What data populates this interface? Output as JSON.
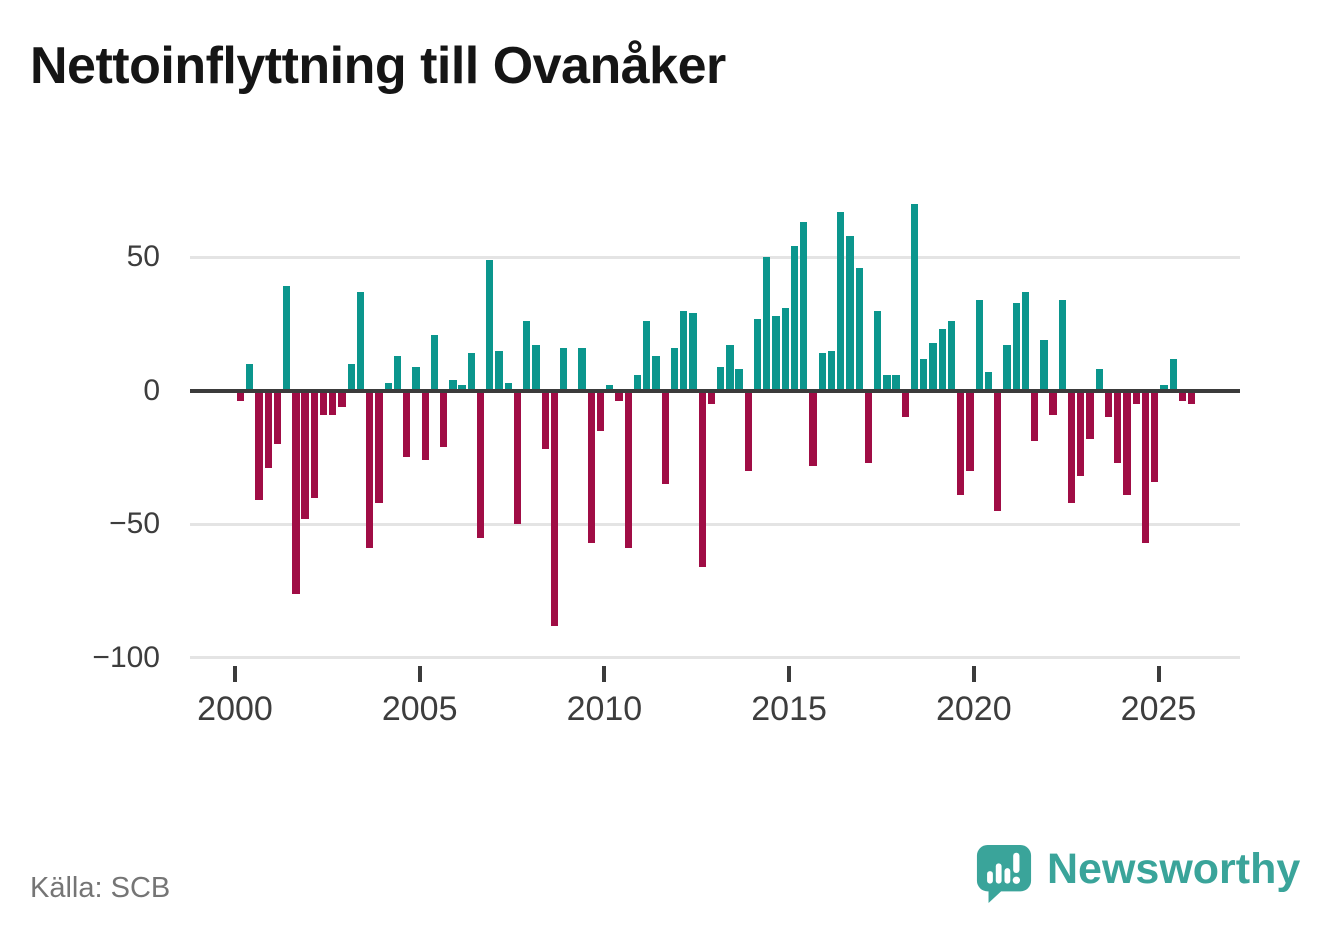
{
  "title": "Nettoinflyttning till Ovanåker",
  "source": "Källa: SCB",
  "branding": {
    "wordmark": "Newsworthy",
    "color": "#3aa49a"
  },
  "chart_data": {
    "type": "bar",
    "title": "Nettoinflyttning till Ovanåker",
    "frequency": "quarterly",
    "x_start": "2000-Q1",
    "x_end": "2025-Q4",
    "ylabel": "",
    "xlabel": "",
    "ylim": [
      -112,
      78
    ],
    "y_ticks": [
      50,
      0,
      -50,
      -100
    ],
    "y_tick_labels": [
      "50",
      "0",
      "−50",
      "−100"
    ],
    "x_tick_years": [
      2000,
      2005,
      2010,
      2015,
      2020,
      2025
    ],
    "x_tick_labels": [
      "2000",
      "2005",
      "2010",
      "2015",
      "2020",
      "2025"
    ],
    "grid": "horizontal",
    "legend": "none",
    "series": [
      {
        "name": "Nettoinflyttning",
        "values": [
          -4,
          10,
          -41,
          -29,
          -20,
          39,
          -76,
          -48,
          -40,
          -9,
          -9,
          -6,
          10,
          37,
          -59,
          -42,
          3,
          13,
          -25,
          9,
          -26,
          21,
          -21,
          4,
          2,
          14,
          -55,
          49,
          15,
          3,
          -50,
          26,
          17,
          -22,
          -88,
          16,
          0,
          16,
          -57,
          -15,
          2,
          -4,
          -59,
          6,
          26,
          13,
          -35,
          16,
          30,
          29,
          -66,
          -5,
          9,
          17,
          8,
          -30,
          27,
          50,
          28,
          31,
          54,
          63,
          -28,
          14,
          15,
          67,
          58,
          46,
          -27,
          30,
          6,
          6,
          -10,
          70,
          12,
          18,
          23,
          26,
          -39,
          -30,
          34,
          7,
          -45,
          17,
          33,
          37,
          -19,
          19,
          -9,
          34,
          -42,
          -32,
          -18,
          8,
          -10,
          -27,
          -39,
          -5,
          -57,
          -34,
          2,
          12,
          -4,
          -5
        ]
      }
    ],
    "colors": {
      "positive": "#0b968d",
      "negative": "#a00d45",
      "zero_line": "#3b3b3b",
      "gridline": "#e4e4e4",
      "axis_text": "#3d3d3d"
    }
  }
}
